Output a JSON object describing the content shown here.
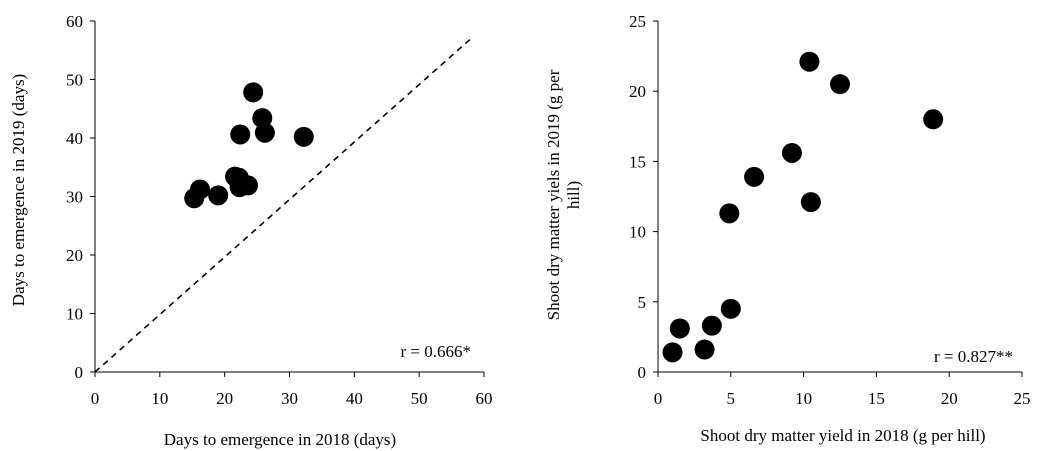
{
  "chart_data": [
    {
      "type": "scatter",
      "xlabel": "Days to emergence in 2018 (days)",
      "ylabel": "Days to emergence in 2019 (days)",
      "xlim": [
        0,
        60
      ],
      "ylim": [
        0,
        60
      ],
      "xticks": [
        "0",
        "10",
        "20",
        "30",
        "40",
        "50",
        "60"
      ],
      "yticks": [
        "0",
        "10",
        "20",
        "30",
        "40",
        "50",
        "60"
      ],
      "grid": false,
      "reference_line": "dashed 1:1 line",
      "annotation": "r = 0.666*",
      "points": [
        {
          "x": 15.3,
          "y": 29.7
        },
        {
          "x": 16.2,
          "y": 31.2
        },
        {
          "x": 19.0,
          "y": 30.2
        },
        {
          "x": 21.6,
          "y": 33.4
        },
        {
          "x": 22.2,
          "y": 33.2
        },
        {
          "x": 22.3,
          "y": 31.6
        },
        {
          "x": 23.6,
          "y": 31.9
        },
        {
          "x": 22.4,
          "y": 40.6
        },
        {
          "x": 24.4,
          "y": 47.8
        },
        {
          "x": 25.8,
          "y": 43.4
        },
        {
          "x": 26.2,
          "y": 40.9
        },
        {
          "x": 32.2,
          "y": 40.2
        }
      ]
    },
    {
      "type": "scatter",
      "xlabel": "Shoot dry matter yield in 2018 (g per hill)",
      "ylabel": "Shoot dry matter yiels in 2019 (g per hill)",
      "ylabel_lines": [
        "Shoot dry matter yiels in 2019 (g per",
        "hill)"
      ],
      "xlim": [
        0,
        25
      ],
      "ylim": [
        0,
        25
      ],
      "xticks": [
        "0",
        "5",
        "10",
        "15",
        "20",
        "25"
      ],
      "yticks": [
        "0",
        "5",
        "10",
        "15",
        "20",
        "25"
      ],
      "grid": false,
      "annotation": "r = 0.827**",
      "points": [
        {
          "x": 1.0,
          "y": 1.4
        },
        {
          "x": 1.5,
          "y": 3.1
        },
        {
          "x": 3.2,
          "y": 1.6
        },
        {
          "x": 3.7,
          "y": 3.3
        },
        {
          "x": 5.0,
          "y": 4.5
        },
        {
          "x": 4.9,
          "y": 11.3
        },
        {
          "x": 6.6,
          "y": 13.9
        },
        {
          "x": 9.2,
          "y": 15.6
        },
        {
          "x": 10.4,
          "y": 22.1
        },
        {
          "x": 10.5,
          "y": 12.1
        },
        {
          "x": 12.5,
          "y": 20.5
        },
        {
          "x": 18.9,
          "y": 18.0
        }
      ]
    }
  ]
}
